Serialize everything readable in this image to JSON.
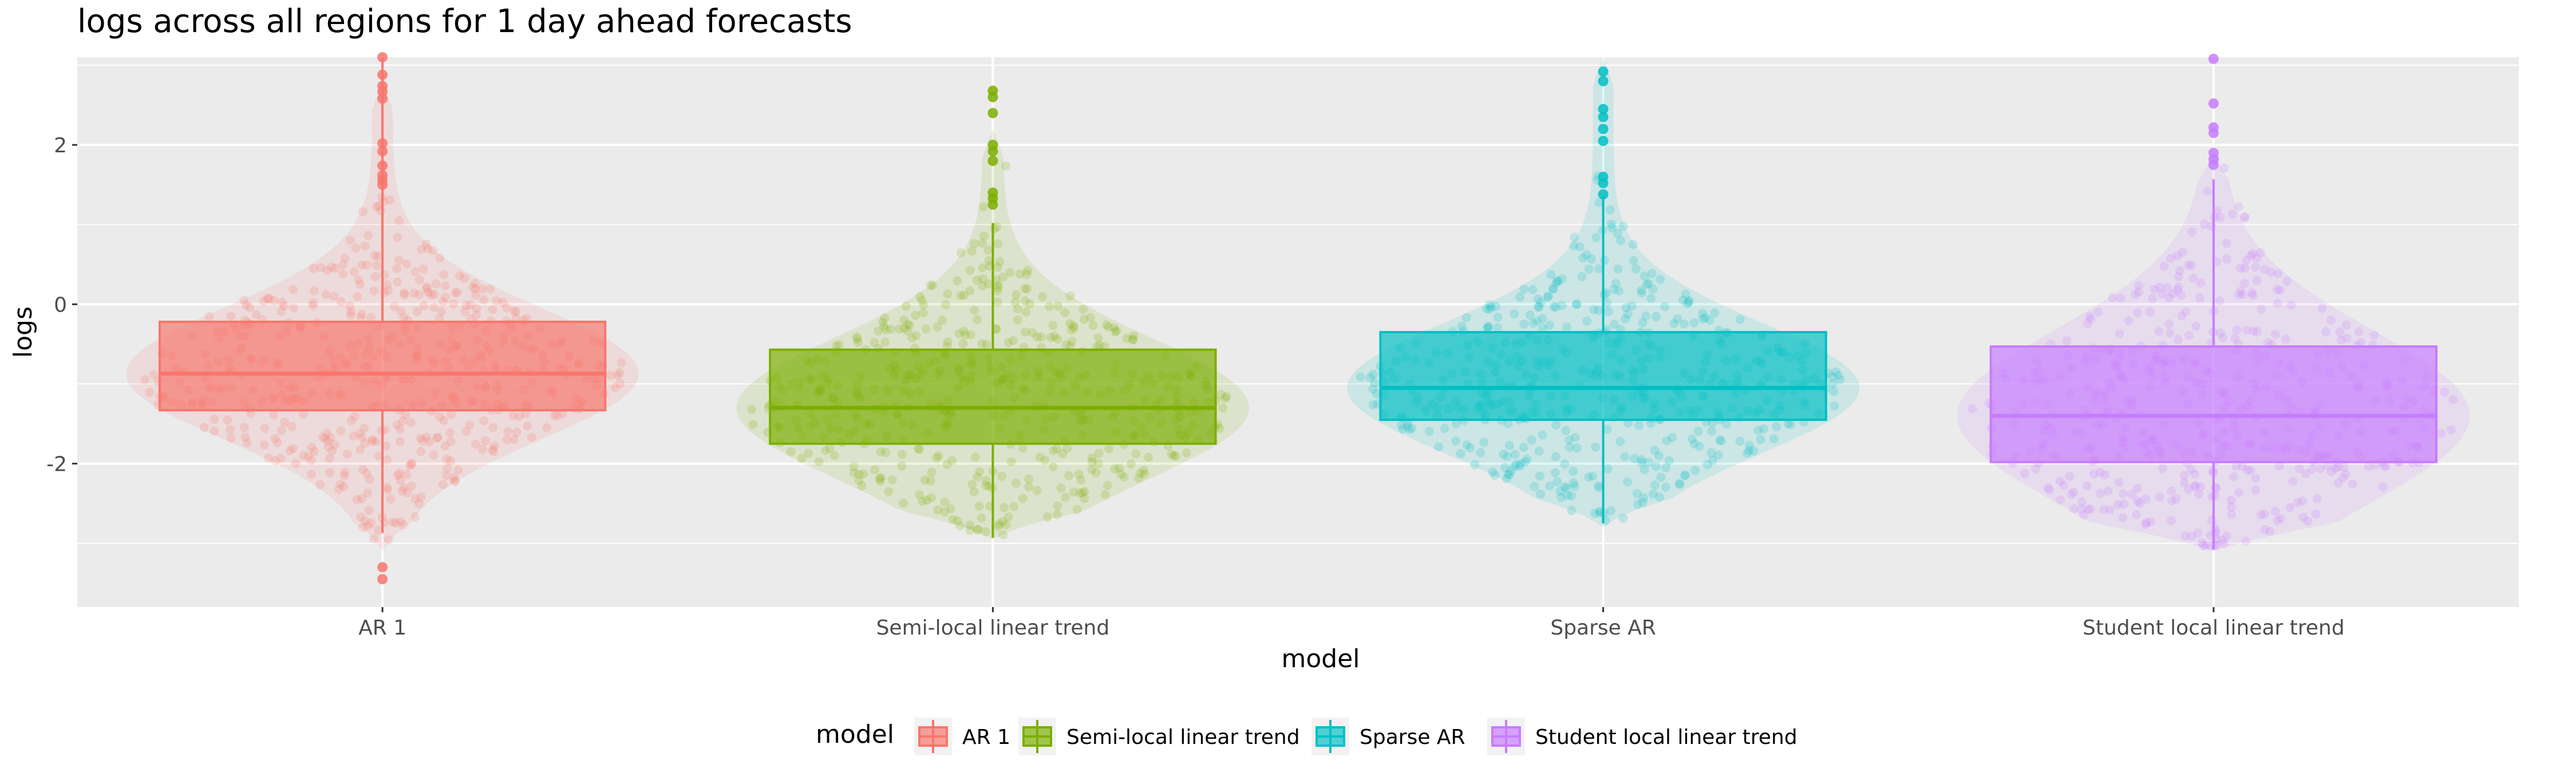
{
  "chart_data": {
    "type": "box",
    "title": "logs across all regions for 1 day ahead forecasts",
    "xlabel": "model",
    "ylabel": "logs",
    "ylim": [
      -3.8,
      3.1
    ],
    "yticks": [
      -2,
      0,
      2
    ],
    "ytick_labels": [
      "-2",
      "0",
      "2"
    ],
    "grid": true,
    "legend": {
      "title": "model",
      "position": "bottom"
    },
    "categories": [
      "AR 1",
      "Semi-local linear trend",
      "Sparse AR",
      "Student local linear trend"
    ],
    "series": [
      {
        "name": "AR 1",
        "color": "#F8766D",
        "box": {
          "q1": -1.33,
          "median": -0.87,
          "q3": -0.22,
          "whisker_low": -2.87,
          "whisker_high": 3.1
        },
        "violin_range": [
          -3.1,
          2.8
        ],
        "outliers": [
          1.5,
          1.56,
          1.62,
          1.74,
          1.92,
          2.02,
          2.58,
          2.67,
          2.74,
          2.88,
          3.1,
          -3.3,
          -3.45
        ]
      },
      {
        "name": "Semi-local linear trend",
        "color": "#7CAE00",
        "box": {
          "q1": -1.75,
          "median": -1.3,
          "q3": -0.57,
          "whisker_low": -2.93,
          "whisker_high": 1.02
        },
        "violin_range": [
          -2.95,
          2.2
        ],
        "outliers": [
          1.25,
          1.33,
          1.4,
          1.8,
          1.92,
          2.0,
          2.4,
          2.6,
          2.68
        ]
      },
      {
        "name": "Sparse AR",
        "color": "#00BFC4",
        "box": {
          "q1": -1.45,
          "median": -1.05,
          "q3": -0.35,
          "whisker_low": -2.75,
          "whisker_high": 1.35
        },
        "violin_range": [
          -2.8,
          3.1
        ],
        "outliers": [
          1.38,
          1.52,
          1.6,
          2.05,
          2.2,
          2.35,
          2.45,
          2.8,
          2.92
        ]
      },
      {
        "name": "Student local linear trend",
        "color": "#C77CFF",
        "box": {
          "q1": -1.98,
          "median": -1.4,
          "q3": -0.53,
          "whisker_low": -3.08,
          "whisker_high": 1.57
        },
        "violin_range": [
          -3.1,
          1.9
        ],
        "outliers": [
          1.75,
          1.82,
          1.9,
          2.15,
          2.22,
          2.52,
          3.08
        ]
      }
    ]
  }
}
